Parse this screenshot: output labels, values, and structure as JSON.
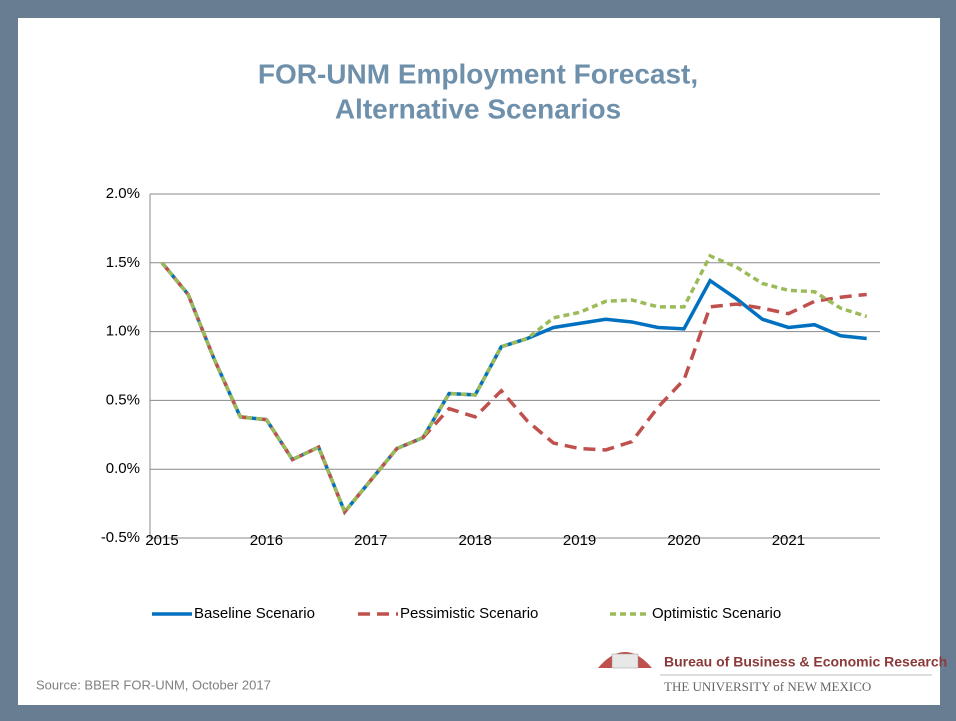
{
  "chart_data": {
    "type": "line",
    "title": [
      "FOR-UNM Employment Forecast,",
      "Alternative Scenarios"
    ],
    "categories": [
      "2015",
      null,
      null,
      null,
      "2016",
      null,
      null,
      null,
      "2017",
      null,
      null,
      null,
      "2018",
      null,
      null,
      null,
      "2019",
      null,
      null,
      null,
      "2020",
      null,
      null,
      null,
      "2021",
      null,
      null,
      null
    ],
    "series": [
      {
        "name": "Baseline Scenario",
        "color": "#0070c0",
        "dash": "solid",
        "values": [
          1.5,
          1.27,
          0.8,
          0.38,
          0.36,
          0.07,
          0.16,
          -0.31,
          -0.08,
          0.15,
          0.23,
          0.55,
          0.54,
          0.89,
          0.95,
          1.03,
          1.06,
          1.09,
          1.07,
          1.03,
          1.02,
          1.37,
          1.24,
          1.09,
          1.03,
          1.05,
          0.97,
          0.95
        ]
      },
      {
        "name": "Pessimistic Scenario",
        "color": "#c0504d",
        "dash": "long",
        "values": [
          1.5,
          1.27,
          0.8,
          0.38,
          0.36,
          0.07,
          0.16,
          -0.31,
          -0.08,
          0.15,
          0.23,
          0.44,
          0.38,
          0.57,
          0.35,
          0.19,
          0.15,
          0.14,
          0.2,
          0.45,
          0.65,
          1.18,
          1.2,
          1.17,
          1.13,
          1.22,
          1.25,
          1.27
        ]
      },
      {
        "name": "Optimistic Scenario",
        "color": "#9bbb59",
        "dash": "short",
        "values": [
          1.5,
          1.27,
          0.8,
          0.38,
          0.36,
          0.07,
          0.16,
          -0.31,
          -0.08,
          0.15,
          0.23,
          0.55,
          0.54,
          0.89,
          0.95,
          1.1,
          1.14,
          1.22,
          1.23,
          1.18,
          1.18,
          1.55,
          1.47,
          1.35,
          1.3,
          1.29,
          1.17,
          1.11
        ]
      }
    ],
    "ylim": [
      -0.5,
      2.0
    ],
    "yticks": [
      {
        "value": -0.5,
        "label": "-0.5%"
      },
      {
        "value": 0,
        "label": "0.0%"
      },
      {
        "value": 0.5,
        "label": "0.5%"
      },
      {
        "value": 1.0,
        "label": "1.0%"
      },
      {
        "value": 1.5,
        "label": "1.5%"
      },
      {
        "value": 2.0,
        "label": "2.0%"
      }
    ],
    "grid": true,
    "legend": "bottom",
    "source": "Source: BBER FOR-UNM, October 2017",
    "logo": [
      "Bureau of Business & Economic Research",
      "THE UNIVERSITY of NEW MEXICO"
    ]
  }
}
